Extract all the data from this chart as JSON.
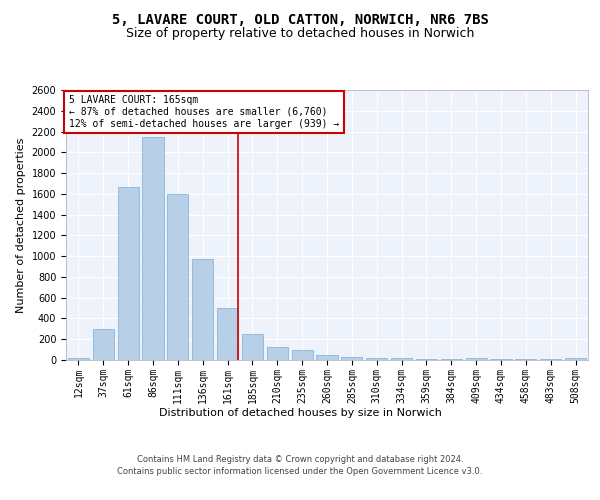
{
  "title_line1": "5, LAVARE COURT, OLD CATTON, NORWICH, NR6 7BS",
  "title_line2": "Size of property relative to detached houses in Norwich",
  "xlabel": "Distribution of detached houses by size in Norwich",
  "ylabel": "Number of detached properties",
  "categories": [
    "12sqm",
    "37sqm",
    "61sqm",
    "86sqm",
    "111sqm",
    "136sqm",
    "161sqm",
    "185sqm",
    "210sqm",
    "235sqm",
    "260sqm",
    "285sqm",
    "310sqm",
    "334sqm",
    "359sqm",
    "384sqm",
    "409sqm",
    "434sqm",
    "458sqm",
    "483sqm",
    "508sqm"
  ],
  "values": [
    20,
    300,
    1670,
    2150,
    1600,
    970,
    500,
    250,
    125,
    100,
    50,
    30,
    20,
    20,
    5,
    5,
    20,
    5,
    5,
    5,
    20
  ],
  "bar_color": "#b8cfe8",
  "bar_edge_color": "#7aadd4",
  "vline_color": "#cc0000",
  "vline_x_index": 6,
  "annotation_text": "5 LAVARE COURT: 165sqm\n← 87% of detached houses are smaller (6,760)\n12% of semi-detached houses are larger (939) →",
  "ylim": [
    0,
    2600
  ],
  "yticks": [
    0,
    200,
    400,
    600,
    800,
    1000,
    1200,
    1400,
    1600,
    1800,
    2000,
    2200,
    2400,
    2600
  ],
  "background_color": "#eef2fa",
  "grid_color": "#ffffff",
  "footer_line1": "Contains HM Land Registry data © Crown copyright and database right 2024.",
  "footer_line2": "Contains public sector information licensed under the Open Government Licence v3.0.",
  "title_fontsize": 10,
  "subtitle_fontsize": 9,
  "tick_fontsize": 7,
  "ylabel_fontsize": 8,
  "xlabel_fontsize": 8,
  "annotation_fontsize": 7,
  "footer_fontsize": 6
}
